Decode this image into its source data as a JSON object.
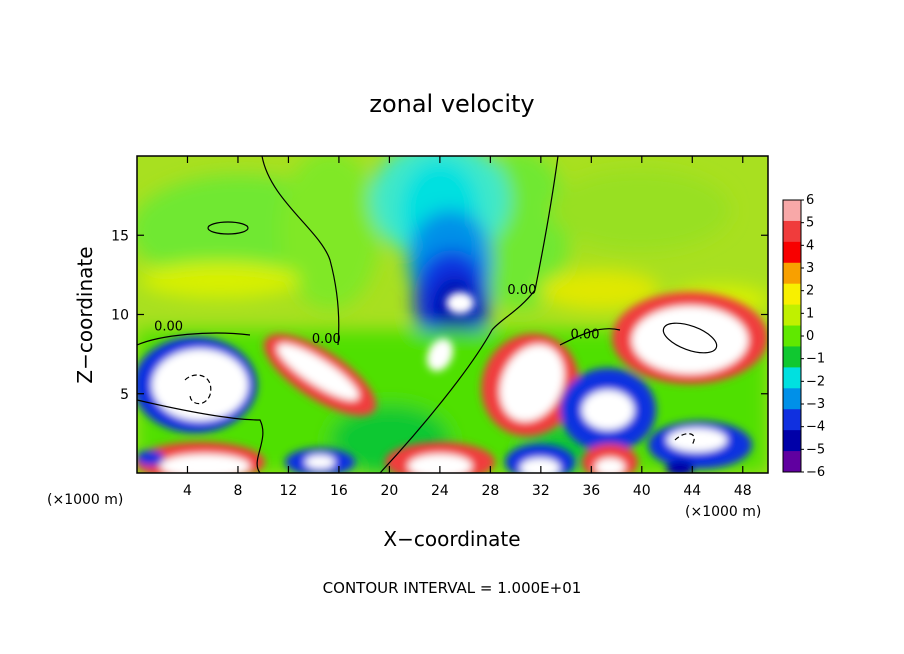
{
  "chart_data": {
    "type": "heatmap",
    "title": "zonal velocity",
    "xlabel": "X−coordinate",
    "ylabel": "Z−coordinate",
    "x_unit_left": "(×1000 m)",
    "x_unit_right": "(×1000 m)",
    "xlim": [
      0,
      50
    ],
    "ylim": [
      0,
      20
    ],
    "x_ticks": [
      4,
      8,
      12,
      16,
      20,
      24,
      28,
      32,
      36,
      40,
      44,
      48
    ],
    "x_tick_labels": [
      "4",
      "8",
      "12",
      "16",
      "20",
      "24",
      "28",
      "32",
      "36",
      "40",
      "44",
      "48"
    ],
    "y_ticks": [
      5,
      10,
      15
    ],
    "y_tick_labels": [
      "5",
      "10",
      "15"
    ],
    "colorbar": {
      "levels": [
        6,
        5,
        4,
        3,
        2,
        1,
        0,
        -1,
        -2,
        -3,
        -4,
        -5,
        -6
      ],
      "labels": [
        "6",
        "5",
        "4",
        "3",
        "2",
        "1",
        "0",
        "−1",
        "−2",
        "−3",
        "−4",
        "−5",
        "−6"
      ],
      "colors": [
        "#f8a8a8",
        "#f03c3c",
        "#f80000",
        "#f8a000",
        "#f8f000",
        "#c0f000",
        "#60e800",
        "#10c830",
        "#00e0e0",
        "#0090e8",
        "#1030e0",
        "#0000a8",
        "#6000a0"
      ]
    },
    "contour_labels": [
      {
        "text": "0.00",
        "x": 2.5,
        "y": 9.0
      },
      {
        "text": "0.00",
        "x": 15.0,
        "y": 8.2
      },
      {
        "text": "0.00",
        "x": 30.5,
        "y": 11.3
      },
      {
        "text": "0.00",
        "x": 35.5,
        "y": 8.5
      }
    ],
    "footer": "CONTOUR INTERVAL =  1.000E+01"
  }
}
